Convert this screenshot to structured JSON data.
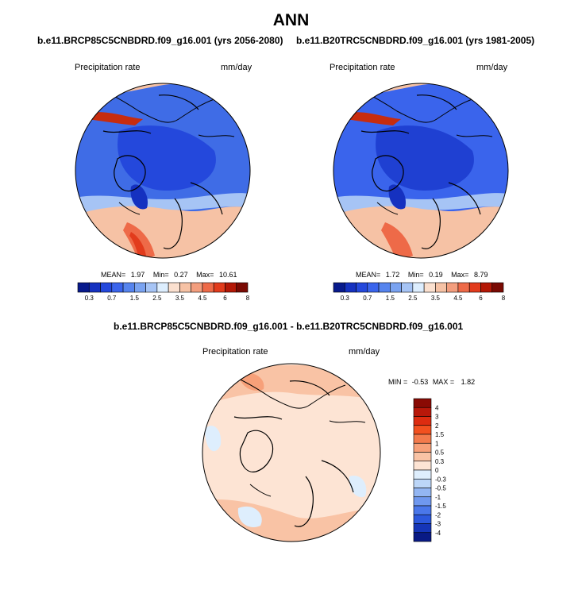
{
  "page_title": "ANN",
  "panels": [
    {
      "case_title": "b.e11.BRCP85C5CNBDRD.f09_g16.001 (yrs 2056-2080)",
      "variable": "Precipitation rate",
      "units": "mm/day",
      "stats": {
        "mean_label": "MEAN=",
        "mean": "1.97",
        "min_label": "Min=",
        "min": "0.27",
        "max_label": "Max=",
        "max": "10.61"
      }
    },
    {
      "case_title": "b.e11.B20TRC5CNBDRD.f09_g16.001 (yrs 1981-2005)",
      "variable": "Precipitation rate",
      "units": "mm/day",
      "stats": {
        "mean_label": "MEAN=",
        "mean": "1.72",
        "min_label": "Min=",
        "min": "0.19",
        "max_label": "Max=",
        "max": "8.79"
      }
    }
  ],
  "diff_panel": {
    "case_title": "b.e11.BRCP85C5CNBDRD.f09_g16.001 - b.e11.B20TRC5CNBDRD.f09_g16.001",
    "variable": "Precipitation rate",
    "units": "mm/day",
    "stats": {
      "min_label": "MIN =",
      "min": "-0.53",
      "max_label": "MAX =",
      "max": "1.82"
    }
  },
  "chart_data": [
    {
      "type": "heatmap",
      "projection": "north polar stereographic",
      "title": "b.e11.BRCP85C5CNBDRD.f09_g16.001 (yrs 2056-2080)",
      "variable": "Precipitation rate",
      "units": "mm/day",
      "colorbar_orientation": "horizontal",
      "levels": [
        0.3,
        0.7,
        1.5,
        2.5,
        3.5,
        4.5,
        6,
        8
      ],
      "tick_labels": [
        "0.3",
        "0.7",
        "1.5",
        "2.5",
        "3.5",
        "4.5",
        "6",
        "8"
      ],
      "colors": [
        "#081a8c",
        "#1531c0",
        "#2448dc",
        "#3a64ec",
        "#5684ee",
        "#7aa3f1",
        "#a6c4f5",
        "#ddeefe",
        "#fbe0cf",
        "#f6c2a5",
        "#f39e7e",
        "#ee6a48",
        "#e23b1c",
        "#b41806",
        "#7a0a03"
      ],
      "mean": 1.97,
      "min": 0.27,
      "max": 10.61
    },
    {
      "type": "heatmap",
      "projection": "north polar stereographic",
      "title": "b.e11.B20TRC5CNBDRD.f09_g16.001 (yrs 1981-2005)",
      "variable": "Precipitation rate",
      "units": "mm/day",
      "colorbar_orientation": "horizontal",
      "levels": [
        0.3,
        0.7,
        1.5,
        2.5,
        3.5,
        4.5,
        6,
        8
      ],
      "tick_labels": [
        "0.3",
        "0.7",
        "1.5",
        "2.5",
        "3.5",
        "4.5",
        "6",
        "8"
      ],
      "colors": [
        "#081a8c",
        "#1531c0",
        "#2448dc",
        "#3a64ec",
        "#5684ee",
        "#7aa3f1",
        "#a6c4f5",
        "#ddeefe",
        "#fbe0cf",
        "#f6c2a5",
        "#f39e7e",
        "#ee6a48",
        "#e23b1c",
        "#b41806",
        "#7a0a03"
      ],
      "mean": 1.72,
      "min": 0.19,
      "max": 8.79
    },
    {
      "type": "heatmap",
      "projection": "north polar stereographic",
      "title": "b.e11.BRCP85C5CNBDRD.f09_g16.001 - b.e11.B20TRC5CNBDRD.f09_g16.001",
      "variable": "Precipitation rate",
      "units": "mm/day",
      "colorbar_orientation": "vertical",
      "levels": [
        -4,
        -3,
        -2,
        -1.5,
        -1,
        -0.5,
        -0.3,
        0,
        0.3,
        0.5,
        1,
        1.5,
        2,
        3,
        4
      ],
      "tick_labels": [
        "4",
        "3",
        "2",
        "1.5",
        "1",
        "0.5",
        "0.3",
        "0",
        "-0.3",
        "-0.5",
        "-1",
        "-1.5",
        "-2",
        "-3",
        "-4"
      ],
      "colors_top_to_bottom": [
        "#8a0a04",
        "#b8180a",
        "#dd2c10",
        "#f2501f",
        "#f37a4c",
        "#f7a079",
        "#f9c3a5",
        "#fde4d4",
        "#deeefd",
        "#bcd6f8",
        "#93b6f3",
        "#6f98ef",
        "#4a77ea",
        "#2c58dd",
        "#1535b8",
        "#091a85"
      ],
      "min": -0.53,
      "max": 1.82
    }
  ]
}
